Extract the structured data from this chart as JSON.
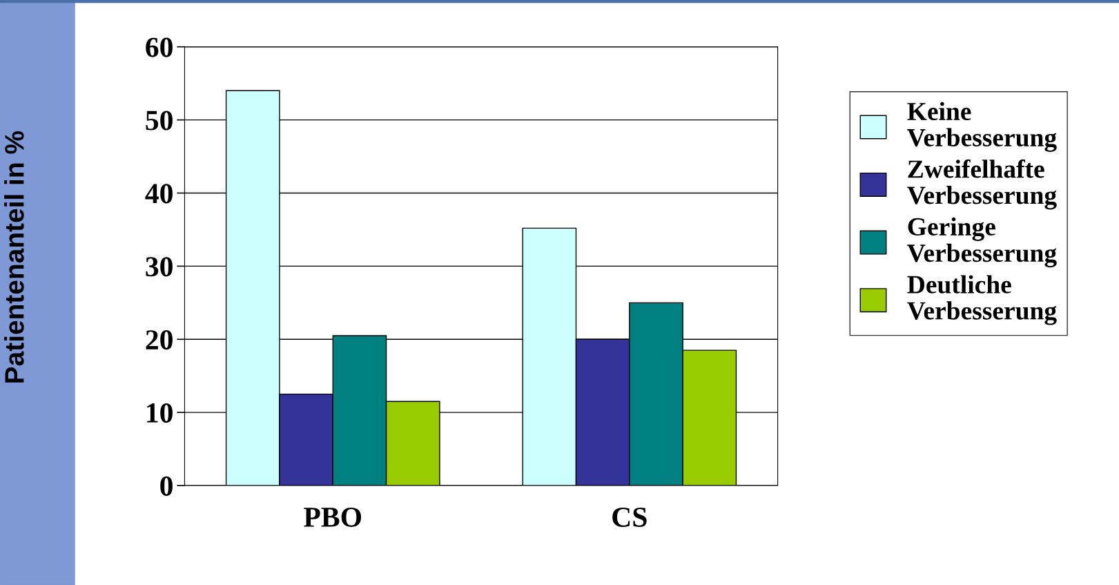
{
  "chart_data": {
    "type": "bar",
    "ylabel": "Patientenanteil in %",
    "categories": [
      "PBO",
      "CS"
    ],
    "series": [
      {
        "name": "Keine Verbesserung",
        "color": "#ccffff",
        "values": [
          54,
          35.2
        ]
      },
      {
        "name": "Zweifelhafte Verbesserung",
        "color": "#333399",
        "values": [
          12.5,
          20
        ]
      },
      {
        "name": "Geringe Verbesserung",
        "color": "#008080",
        "values": [
          20.5,
          25
        ]
      },
      {
        "name": "Deutliche Verbesserung",
        "color": "#99cc00",
        "values": [
          11.5,
          18.5
        ]
      }
    ],
    "ylim": [
      0,
      60
    ],
    "yticks": [
      0,
      10,
      20,
      30,
      40,
      50,
      60
    ],
    "grid": "y",
    "legend": "right"
  }
}
